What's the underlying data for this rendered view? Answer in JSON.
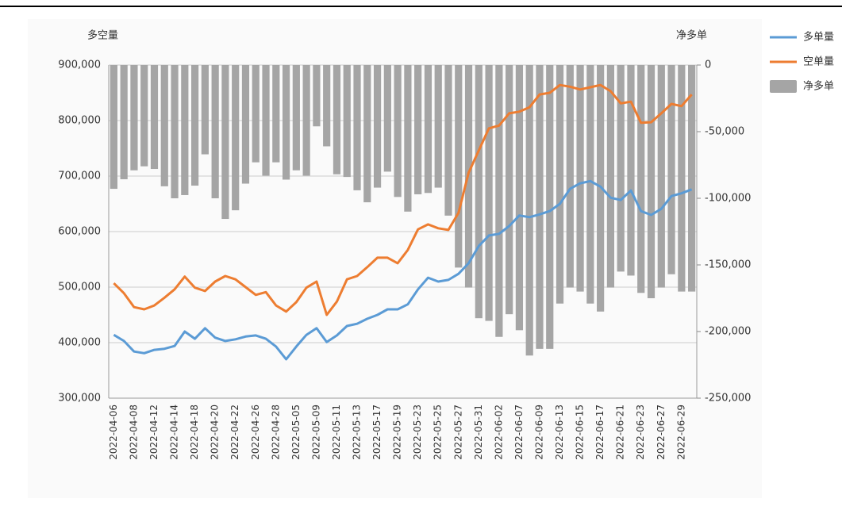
{
  "chart_data": {
    "type": "combo",
    "y_axis_title": "多空量",
    "y2_axis_title": "净多单",
    "categories": [
      "2022-04-06",
      null,
      "2022-04-08",
      null,
      "2022-04-12",
      null,
      "2022-04-14",
      null,
      "2022-04-18",
      null,
      "2022-04-20",
      null,
      "2022-04-22",
      null,
      "2022-04-26",
      null,
      "2022-04-28",
      null,
      "2022-05-05",
      null,
      "2022-05-09",
      null,
      "2022-05-11",
      null,
      "2022-05-13",
      null,
      "2022-05-17",
      null,
      "2022-05-19",
      null,
      "2022-05-23",
      null,
      "2022-05-25",
      null,
      "2022-05-27",
      null,
      "2022-05-31",
      null,
      "2022-06-02",
      null,
      "2022-06-07",
      null,
      "2022-06-09",
      null,
      "2022-06-13",
      null,
      "2022-06-15",
      null,
      "2022-06-17",
      null,
      "2022-06-21",
      null,
      "2022-06-23",
      null,
      "2022-06-27",
      null,
      "2022-06-29",
      null
    ],
    "series": [
      {
        "name": "多单量",
        "type": "line",
        "color": "#5b9bd5",
        "values": [
          414000,
          403000,
          384000,
          381000,
          387000,
          389000,
          394000,
          420000,
          407000,
          426000,
          409000,
          403000,
          406000,
          411000,
          413000,
          407000,
          393000,
          370000,
          393000,
          414000,
          426000,
          401000,
          413000,
          430000,
          434000,
          443000,
          450000,
          460000,
          460000,
          469000,
          496000,
          517000,
          510000,
          513000,
          524000,
          543000,
          574000,
          593000,
          596000,
          610000,
          629000,
          626000,
          631000,
          637000,
          650000,
          677000,
          687000,
          691000,
          681000,
          661000,
          657000,
          674000,
          637000,
          630000,
          641000,
          664000,
          669000,
          676000
        ]
      },
      {
        "name": "空单量",
        "type": "line",
        "color": "#ed7d31",
        "values": [
          507000,
          489000,
          464000,
          460000,
          467000,
          481000,
          496000,
          519000,
          499000,
          493000,
          510000,
          520000,
          514000,
          500000,
          486000,
          491000,
          467000,
          456000,
          473000,
          499000,
          510000,
          450000,
          474000,
          514000,
          520000,
          536000,
          553000,
          553000,
          543000,
          567000,
          604000,
          613000,
          606000,
          603000,
          634000,
          706000,
          746000,
          786000,
          791000,
          813000,
          816000,
          824000,
          847000,
          850000,
          864000,
          861000,
          856000,
          860000,
          864000,
          853000,
          831000,
          834000,
          796000,
          797000,
          813000,
          830000,
          826000,
          847000
        ]
      },
      {
        "name": "净多单",
        "type": "bar",
        "axis": "y2",
        "color": "#a5a5a5",
        "values": [
          -92900,
          -85700,
          -79000,
          -76000,
          -78000,
          -91000,
          -100000,
          -97600,
          -90500,
          -67000,
          -100000,
          -115500,
          -109000,
          -89000,
          -73000,
          -83000,
          -73000,
          -86000,
          -79000,
          -83000,
          -46000,
          -61000,
          -82000,
          -84000,
          -94000,
          -103000,
          -92000,
          -80000,
          -99000,
          -110000,
          -97000,
          -96000,
          -92000,
          -113000,
          -152000,
          -167000,
          -190000,
          -192000,
          -204000,
          -187000,
          -199000,
          -218000,
          -213000,
          -213000,
          -179000,
          -167000,
          -170000,
          -179000,
          -185000,
          -167000,
          -155000,
          -158000,
          -171000,
          -175000,
          -167000,
          -157000,
          -170000,
          -170000
        ]
      }
    ],
    "ylim": [
      300000,
      900000
    ],
    "yticks": [
      {
        "value": 300000,
        "label": "300,000"
      },
      {
        "value": 400000,
        "label": "400,000"
      },
      {
        "value": 500000,
        "label": "500,000"
      },
      {
        "value": 600000,
        "label": "600,000"
      },
      {
        "value": 700000,
        "label": "700,000"
      },
      {
        "value": 800000,
        "label": "800,000"
      },
      {
        "value": 900000,
        "label": "900,000"
      }
    ],
    "y2lim": [
      -250000,
      0
    ],
    "y2ticks": [
      {
        "value": -250000,
        "label": "-250,000"
      },
      {
        "value": -200000,
        "label": "-200,000"
      },
      {
        "value": -150000,
        "label": "-150,000"
      },
      {
        "value": -100000,
        "label": "-100,000"
      },
      {
        "value": -50000,
        "label": "-50,000"
      },
      0
    ],
    "grid": true,
    "legend": "right"
  }
}
